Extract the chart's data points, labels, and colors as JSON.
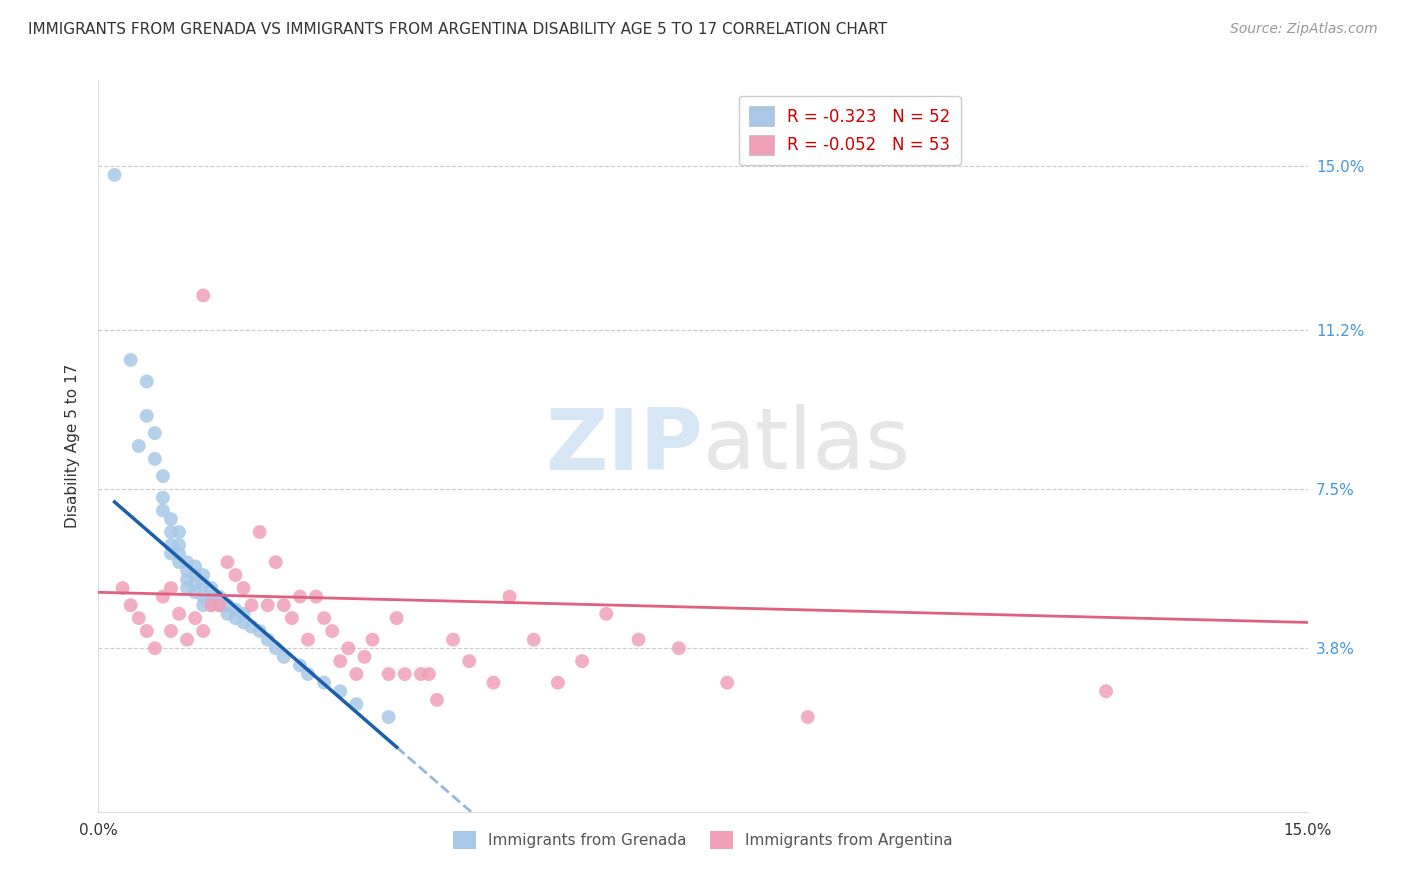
{
  "title": "IMMIGRANTS FROM GRENADA VS IMMIGRANTS FROM ARGENTINA DISABILITY AGE 5 TO 17 CORRELATION CHART",
  "source": "Source: ZipAtlas.com",
  "ylabel": "Disability Age 5 to 17",
  "ytick_labels": [
    "15.0%",
    "11.2%",
    "7.5%",
    "3.8%"
  ],
  "ytick_values": [
    0.15,
    0.112,
    0.075,
    0.038
  ],
  "xlim": [
    0.0,
    0.15
  ],
  "ylim": [
    0.0,
    0.17
  ],
  "legend1_r": "-0.323",
  "legend1_n": "52",
  "legend2_r": "-0.052",
  "legend2_n": "53",
  "color_grenada": "#a8c8e8",
  "color_argentina": "#f0a0b8",
  "color_grenada_line": "#1a5faa",
  "color_argentina_line": "#e06080",
  "watermark_zip": "ZIP",
  "watermark_atlas": "atlas",
  "grenada_x": [
    0.002,
    0.004,
    0.005,
    0.006,
    0.006,
    0.007,
    0.007,
    0.008,
    0.008,
    0.008,
    0.009,
    0.009,
    0.009,
    0.009,
    0.01,
    0.01,
    0.01,
    0.01,
    0.011,
    0.011,
    0.011,
    0.011,
    0.012,
    0.012,
    0.012,
    0.012,
    0.013,
    0.013,
    0.013,
    0.013,
    0.014,
    0.014,
    0.014,
    0.015,
    0.015,
    0.016,
    0.016,
    0.017,
    0.017,
    0.018,
    0.018,
    0.019,
    0.02,
    0.021,
    0.022,
    0.023,
    0.025,
    0.026,
    0.028,
    0.03,
    0.032,
    0.036
  ],
  "grenada_y": [
    0.148,
    0.105,
    0.085,
    0.1,
    0.092,
    0.088,
    0.082,
    0.078,
    0.073,
    0.07,
    0.068,
    0.065,
    0.062,
    0.06,
    0.065,
    0.062,
    0.06,
    0.058,
    0.058,
    0.056,
    0.054,
    0.052,
    0.057,
    0.055,
    0.053,
    0.051,
    0.055,
    0.053,
    0.05,
    0.048,
    0.052,
    0.05,
    0.048,
    0.05,
    0.048,
    0.048,
    0.046,
    0.047,
    0.045,
    0.046,
    0.044,
    0.043,
    0.042,
    0.04,
    0.038,
    0.036,
    0.034,
    0.032,
    0.03,
    0.028,
    0.025,
    0.022
  ],
  "argentina_x": [
    0.003,
    0.004,
    0.005,
    0.006,
    0.007,
    0.008,
    0.009,
    0.009,
    0.01,
    0.011,
    0.012,
    0.013,
    0.013,
    0.014,
    0.015,
    0.016,
    0.017,
    0.018,
    0.019,
    0.02,
    0.021,
    0.022,
    0.023,
    0.024,
    0.025,
    0.026,
    0.027,
    0.028,
    0.029,
    0.03,
    0.031,
    0.032,
    0.033,
    0.034,
    0.036,
    0.037,
    0.038,
    0.04,
    0.041,
    0.042,
    0.044,
    0.046,
    0.049,
    0.051,
    0.054,
    0.057,
    0.06,
    0.063,
    0.067,
    0.072,
    0.078,
    0.088,
    0.125
  ],
  "argentina_y": [
    0.052,
    0.048,
    0.045,
    0.042,
    0.038,
    0.05,
    0.052,
    0.042,
    0.046,
    0.04,
    0.045,
    0.042,
    0.12,
    0.048,
    0.048,
    0.058,
    0.055,
    0.052,
    0.048,
    0.065,
    0.048,
    0.058,
    0.048,
    0.045,
    0.05,
    0.04,
    0.05,
    0.045,
    0.042,
    0.035,
    0.038,
    0.032,
    0.036,
    0.04,
    0.032,
    0.045,
    0.032,
    0.032,
    0.032,
    0.026,
    0.04,
    0.035,
    0.03,
    0.05,
    0.04,
    0.03,
    0.035,
    0.046,
    0.04,
    0.038,
    0.03,
    0.022,
    0.028
  ],
  "grenada_line_x": [
    0.002,
    0.037
  ],
  "argentina_line_x": [
    0.0,
    0.15
  ],
  "grenada_line_y_intercept": 0.072,
  "grenada_line_y_end": 0.015,
  "argentina_line_y_intercept": 0.051,
  "argentina_line_y_end": 0.044
}
